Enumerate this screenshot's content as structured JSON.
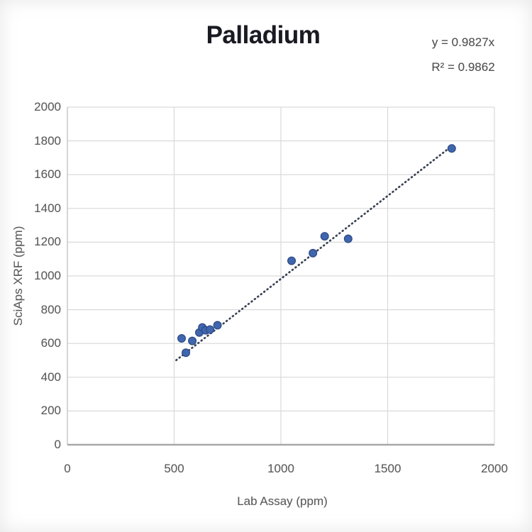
{
  "chart_data": {
    "type": "scatter",
    "title": "Palladium",
    "xlabel": "Lab Assay (ppm)",
    "ylabel": "SciAps XRF (ppm)",
    "xlim": [
      0,
      2000
    ],
    "ylim": [
      0,
      2000
    ],
    "x_ticks": [
      0,
      500,
      1000,
      1500,
      2000
    ],
    "y_ticks": [
      0,
      200,
      400,
      600,
      800,
      1000,
      1200,
      1400,
      1600,
      1800,
      2000
    ],
    "grid": true,
    "legend": "none",
    "points": [
      {
        "x": 535,
        "y": 630
      },
      {
        "x": 555,
        "y": 545
      },
      {
        "x": 585,
        "y": 615
      },
      {
        "x": 618,
        "y": 665
      },
      {
        "x": 632,
        "y": 695
      },
      {
        "x": 648,
        "y": 678
      },
      {
        "x": 668,
        "y": 682
      },
      {
        "x": 703,
        "y": 708
      },
      {
        "x": 1050,
        "y": 1090
      },
      {
        "x": 1150,
        "y": 1135
      },
      {
        "x": 1205,
        "y": 1235
      },
      {
        "x": 1315,
        "y": 1220
      },
      {
        "x": 1800,
        "y": 1755
      }
    ],
    "trendline": {
      "equation": "y = 0.9827x",
      "r_squared_label": "R² = 0.9862",
      "slope": 0.9827,
      "intercept": 0,
      "x_start": 510,
      "x_end": 1812,
      "style": "dotted"
    },
    "colors": {
      "marker_fill": "#4066AE",
      "marker_edge": "#2D4A85",
      "trendline": "#3B4455",
      "gridline": "#D9D9D9",
      "axis_line": "#A8A8A8",
      "minor_axis_line": "#C4C4C4",
      "tick_text": "#595959",
      "title_text": "#1A1A22",
      "equation_text": "#4D4D4D"
    }
  }
}
